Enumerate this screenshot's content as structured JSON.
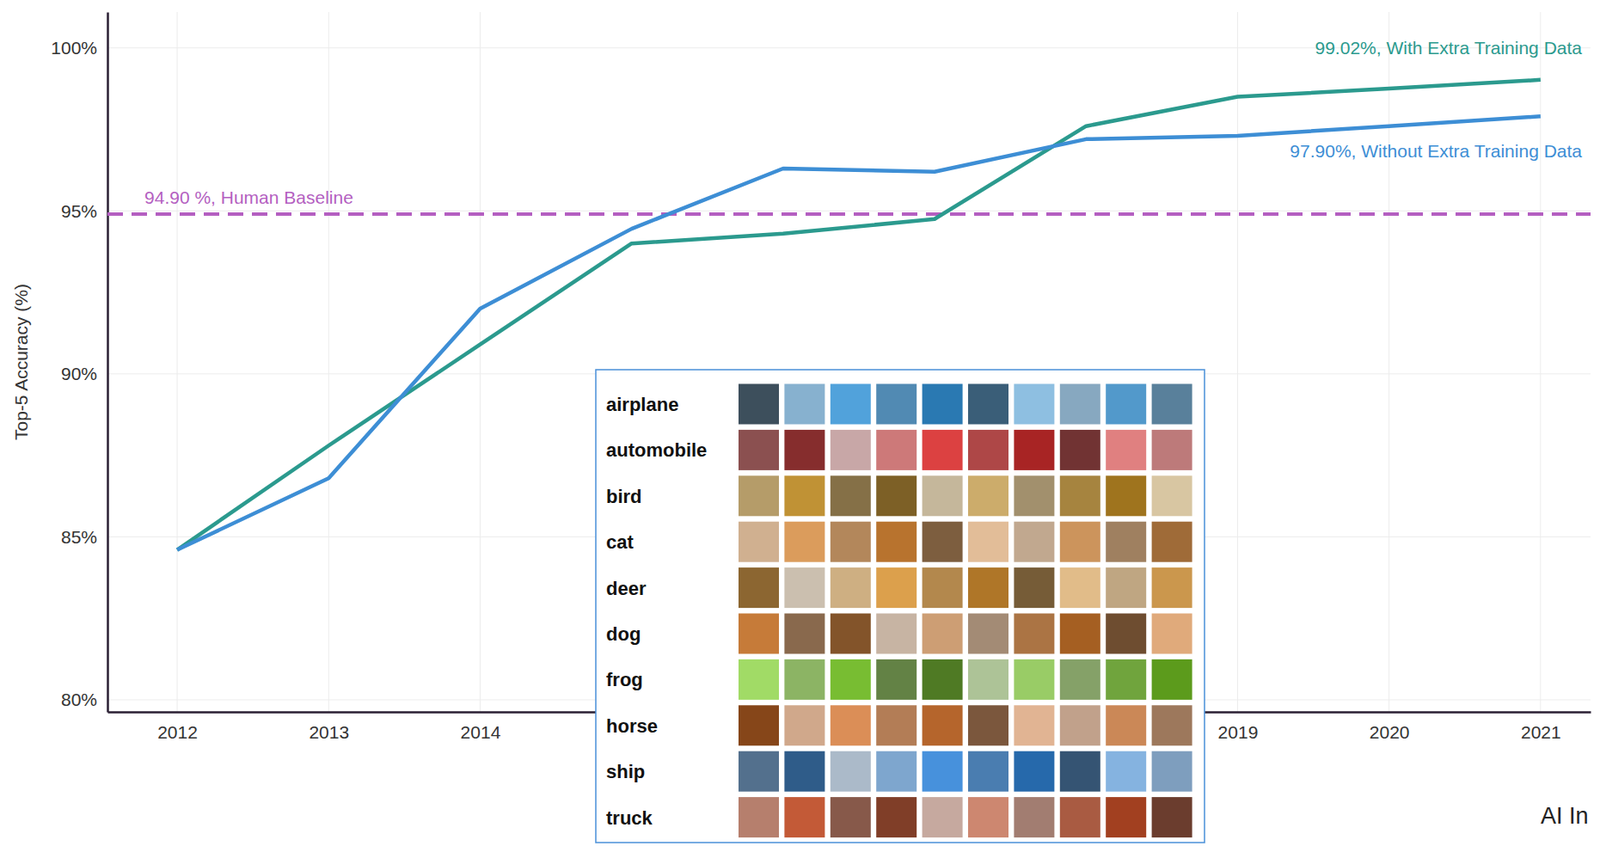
{
  "chart_data": {
    "type": "line",
    "x": [
      2012,
      2013,
      2014,
      2015,
      2016,
      2017,
      2018,
      2019,
      2020,
      2021
    ],
    "xlim": [
      2011.54,
      2021.33
    ],
    "xticks": [
      2012,
      2013,
      2014,
      2019,
      2020,
      2021
    ],
    "ylim": [
      79.63,
      101.1
    ],
    "yticks": [
      {
        "value": 80,
        "label": "80%"
      },
      {
        "value": 85,
        "label": "85%"
      },
      {
        "value": 90,
        "label": "90%"
      },
      {
        "value": 95,
        "label": "95%"
      },
      {
        "value": 100,
        "label": "100%"
      }
    ],
    "y_label": "Top-5 Accuracy (%)",
    "grid": true,
    "series": [
      {
        "label": "99.02%, With Extra Training Data",
        "color": "#2b9a8e",
        "values": [
          84.6,
          87.8,
          90.9,
          94.0,
          94.3,
          94.75,
          97.6,
          98.5,
          98.75,
          99.02
        ]
      },
      {
        "label": "97.90%, Without Extra Training Data",
        "color": "#3d8ed5",
        "values": [
          84.6,
          86.8,
          92.0,
          94.45,
          96.3,
          96.2,
          97.2,
          97.3,
          97.6,
          97.9
        ]
      }
    ],
    "reference_lines": [
      {
        "value": 94.9,
        "label": "94.90 %, Human Baseline",
        "color": "#b45fc1",
        "line_style": "dashed"
      }
    ],
    "inset": {
      "categories": [
        "airplane",
        "automobile",
        "bird",
        "cat",
        "deer",
        "dog",
        "frog",
        "horse",
        "ship",
        "truck"
      ]
    },
    "footer": "AI In"
  }
}
